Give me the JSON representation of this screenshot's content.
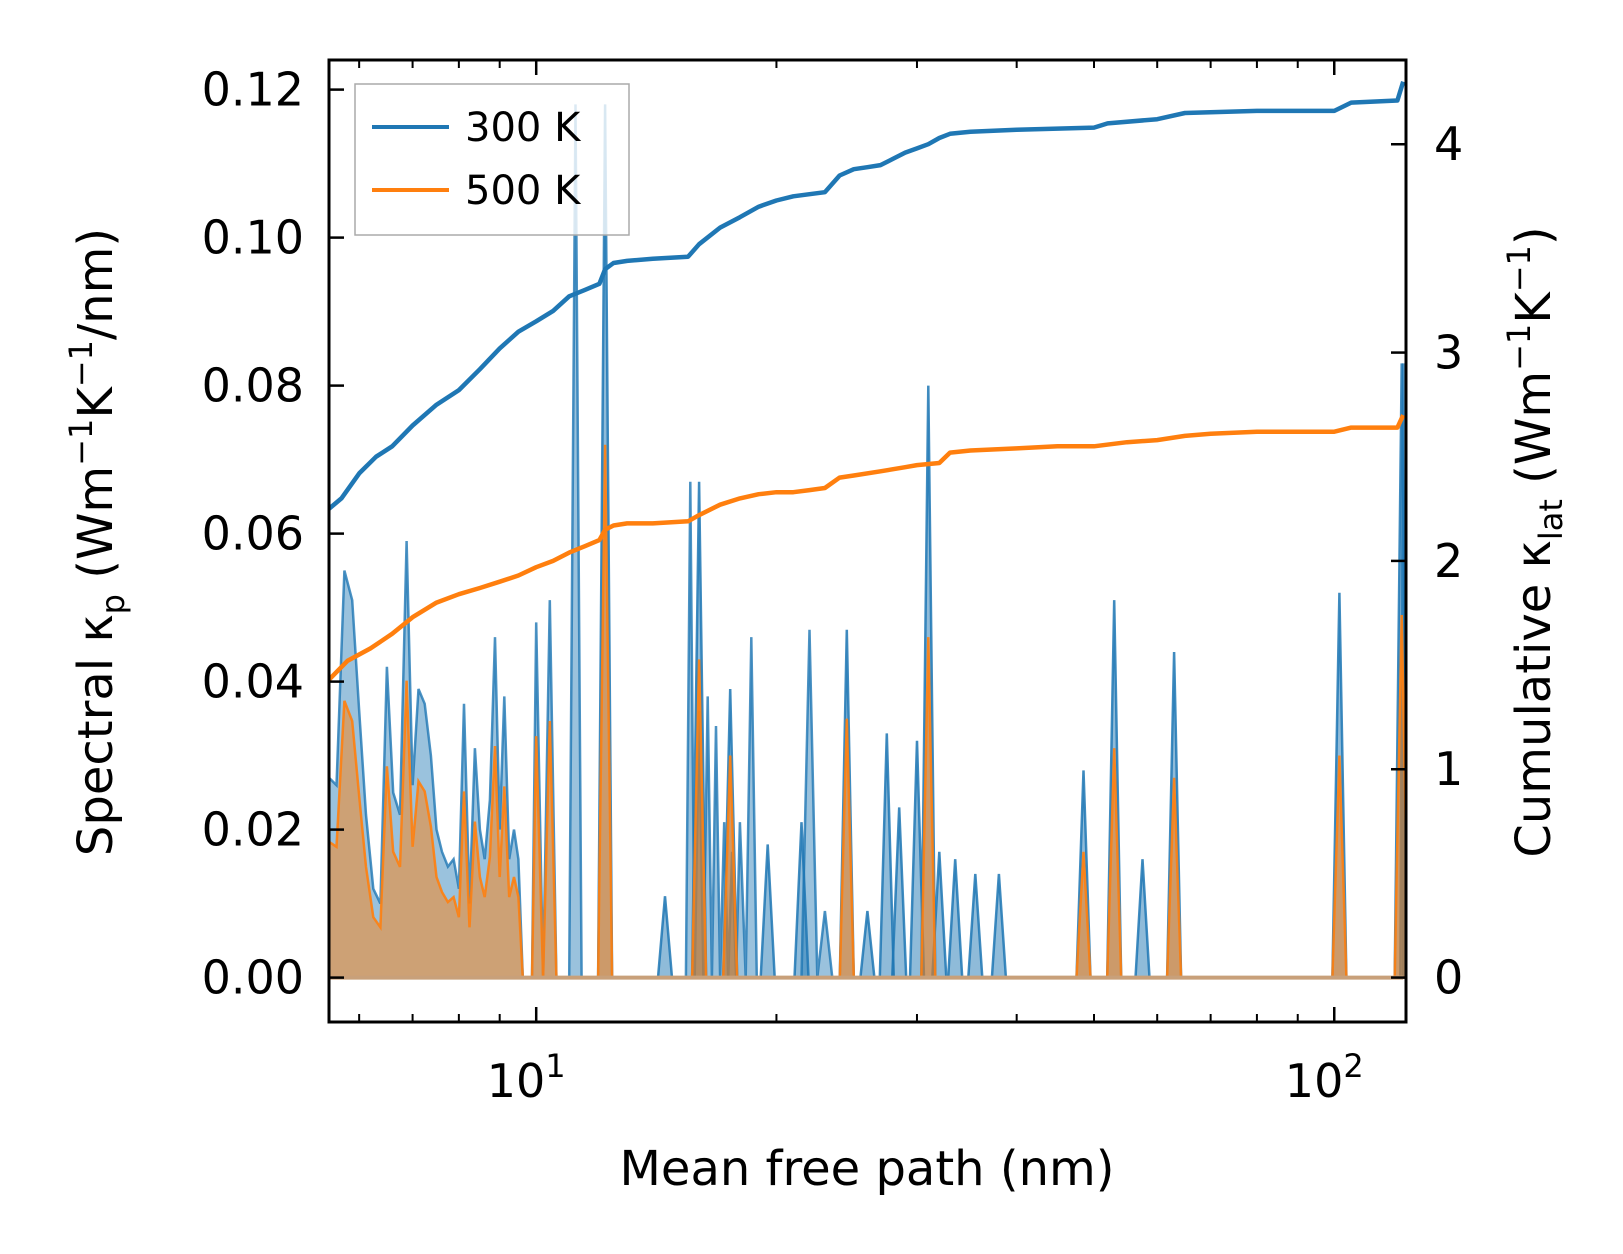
{
  "chart_data": {
    "type": "line",
    "xlabel": "Mean free path (nm)",
    "xscale": "log",
    "xlim": [
      5.5,
      123
    ],
    "x_tick_labels": [
      {
        "value": 10,
        "base": "10",
        "exp": "1"
      },
      {
        "value": 100,
        "base": "10",
        "exp": "2"
      }
    ],
    "y_left": {
      "label_prefix": "Spectral κ",
      "label_sub": "p",
      "label_units_open": " (Wm",
      "label_units_exp1": "−1",
      "label_units_mid": "K",
      "label_units_exp2": "−1",
      "label_units_close": "/nm)",
      "lim": [
        -0.006,
        0.124
      ],
      "ticks": [
        0.0,
        0.02,
        0.04,
        0.06,
        0.08,
        0.1,
        0.12
      ],
      "tick_labels": [
        "0.00",
        "0.02",
        "0.04",
        "0.06",
        "0.08",
        "0.10",
        "0.12"
      ]
    },
    "y_right": {
      "label_prefix": "Cumulative κ",
      "label_sub": "lat",
      "label_units_open": " (Wm",
      "label_units_exp1": "−1",
      "label_units_mid": "K",
      "label_units_exp2": "−1",
      "label_units_close": ")",
      "lim": [
        -0.2133,
        4.4044
      ],
      "ticks": [
        0,
        1,
        2,
        3,
        4
      ],
      "tick_labels": [
        "0",
        "1",
        "2",
        "3",
        "4"
      ]
    },
    "legend": {
      "position": "top-left",
      "entries": [
        "300 K",
        "500 K"
      ]
    },
    "colors": {
      "300 K": "#1f77b4",
      "500 K": "#ff7f0e"
    },
    "series": [
      {
        "name": "300 K",
        "axis": "right",
        "x": [
          5.5,
          5.7,
          6.0,
          6.3,
          6.6,
          7.0,
          7.5,
          8.0,
          8.5,
          9.0,
          9.5,
          10.0,
          10.5,
          11.0,
          11.5,
          12.0,
          12.2,
          12.5,
          13.0,
          14.0,
          15.5,
          16.0,
          17.0,
          18.0,
          19.0,
          20.0,
          21.0,
          22.0,
          23.0,
          24.0,
          25.0,
          26.0,
          27.0,
          28.0,
          29.0,
          30.0,
          31.0,
          32.0,
          33.0,
          35.0,
          40.0,
          50.0,
          52.0,
          60.0,
          65.0,
          80.0,
          100.0,
          105.0,
          120.0,
          122.0
        ],
        "values": [
          2.25,
          2.3,
          2.42,
          2.5,
          2.55,
          2.65,
          2.75,
          2.82,
          2.92,
          3.02,
          3.1,
          3.15,
          3.2,
          3.27,
          3.3,
          3.33,
          3.4,
          3.43,
          3.44,
          3.45,
          3.46,
          3.52,
          3.6,
          3.65,
          3.7,
          3.73,
          3.75,
          3.76,
          3.77,
          3.85,
          3.88,
          3.89,
          3.9,
          3.93,
          3.96,
          3.98,
          4.0,
          4.03,
          4.05,
          4.06,
          4.07,
          4.08,
          4.1,
          4.12,
          4.15,
          4.16,
          4.16,
          4.2,
          4.21,
          4.3
        ]
      },
      {
        "name": "500 K",
        "axis": "right",
        "x": [
          5.5,
          5.8,
          6.2,
          6.6,
          7.0,
          7.5,
          8.0,
          8.5,
          9.0,
          9.5,
          10.0,
          10.5,
          11.0,
          11.5,
          12.0,
          12.2,
          12.5,
          13.0,
          14.0,
          15.5,
          16.0,
          17.0,
          18.0,
          19.0,
          20.0,
          21.0,
          22.0,
          23.0,
          24.0,
          25.0,
          27.0,
          29.0,
          30.0,
          32.0,
          33.0,
          35.0,
          40.0,
          45.0,
          50.0,
          55.0,
          60.0,
          65.0,
          70.0,
          80.0,
          100.0,
          105.0,
          120.0,
          122.0
        ],
        "values": [
          1.43,
          1.52,
          1.58,
          1.65,
          1.73,
          1.8,
          1.84,
          1.87,
          1.9,
          1.93,
          1.97,
          2.0,
          2.04,
          2.07,
          2.1,
          2.15,
          2.17,
          2.18,
          2.18,
          2.19,
          2.22,
          2.27,
          2.3,
          2.32,
          2.33,
          2.33,
          2.34,
          2.35,
          2.4,
          2.41,
          2.43,
          2.45,
          2.46,
          2.47,
          2.52,
          2.53,
          2.54,
          2.55,
          2.55,
          2.57,
          2.58,
          2.6,
          2.61,
          2.62,
          2.62,
          2.64,
          2.64,
          2.7
        ]
      },
      {
        "name": "300 K spectral",
        "axis": "left",
        "x": [
          5.5,
          5.62,
          5.75,
          5.88,
          6.0,
          6.12,
          6.25,
          6.38,
          6.5,
          6.62,
          6.75,
          6.88,
          7.0,
          7.12,
          7.25,
          7.38,
          7.5,
          7.62,
          7.75,
          7.88,
          8.0,
          8.12,
          8.25,
          8.38,
          8.5,
          8.62,
          8.75,
          8.88,
          9.0,
          9.12,
          9.25,
          9.38,
          9.5,
          9.62,
          9.75,
          9.88,
          10.0,
          10.2,
          10.4,
          10.6,
          10.8,
          11.0,
          11.2,
          11.4,
          11.6,
          11.8,
          12.0,
          12.15,
          12.3,
          12.5,
          12.7,
          12.9,
          13.1,
          13.3,
          13.5,
          13.7,
          14.0,
          15.4,
          15.6,
          15.8,
          16.0,
          16.2,
          16.4,
          16.6,
          16.8,
          17.0,
          17.2,
          17.4,
          17.6,
          17.8,
          18.0,
          18.3,
          18.6,
          18.9,
          19.2,
          19.5,
          19.8,
          20.1,
          20.4,
          20.7,
          21.0,
          21.5,
          22.0,
          22.5,
          23.0,
          23.5,
          24.0,
          24.5,
          25.0,
          25.5,
          26.0,
          26.5,
          27.0,
          27.5,
          28.0,
          28.5,
          29.0,
          29.5,
          30.0,
          30.5,
          31.0,
          31.5,
          32.0,
          32.5,
          33.0,
          33.5,
          34.0,
          34.5,
          35.0,
          36.0,
          37.0,
          38.0,
          39.0,
          40.0,
          47.0,
          48.0,
          49.0,
          50.0,
          51.0,
          52.0,
          53.0,
          54.0,
          55.0,
          56.0,
          57.0,
          58.0,
          59.0,
          60.0,
          61.0,
          62.0,
          100.0,
          101.0,
          102.0,
          103.0,
          104.0,
          118.0,
          119.5,
          121.0,
          122.0
        ],
        "values": [
          0.027,
          0.026,
          0.055,
          0.051,
          0.036,
          0.022,
          0.012,
          0.01,
          0.042,
          0.025,
          0.022,
          0.059,
          0.026,
          0.039,
          0.037,
          0.03,
          0.02,
          0.017,
          0.015,
          0.016,
          0.012,
          0.037,
          0.01,
          0.031,
          0.02,
          0.016,
          0.024,
          0.046,
          0.02,
          0.038,
          0.016,
          0.02,
          0.016,
          0.0,
          0.0,
          0.0,
          0.048,
          0.0,
          0.051,
          0.0,
          0.0,
          0.0,
          0.118,
          0.0,
          0.0,
          0.0,
          0.0,
          0.0,
          0.0,
          0.0,
          0.0,
          0.0,
          0.0,
          0.0,
          0.0,
          0.0,
          0.0,
          0.0,
          0.067,
          0.0,
          0.036,
          0.0,
          0.038,
          0.0,
          0.034,
          0.0,
          0.021,
          0.0,
          0.017,
          0.0,
          0.021,
          0.0,
          0.046,
          0.0,
          0.0,
          0.0,
          0.0,
          0.0,
          0.0,
          0.0,
          0.0,
          0.0,
          0.047,
          0.0,
          0.009,
          0.0,
          0.0,
          0.0,
          0.0,
          0.0,
          0.0,
          0.0,
          0.0,
          0.0,
          0.0,
          0.0,
          0.0,
          0.0,
          0.0,
          0.0,
          0.0,
          0.0,
          0.0,
          0.0,
          0.0,
          0.0,
          0.0,
          0.0,
          0.0,
          0.0,
          0.0,
          0.0,
          0.0,
          0.0,
          0.0,
          0.0,
          0.0,
          0.0,
          0.0,
          0.0,
          0.0,
          0.0,
          0.0,
          0.0,
          0.0,
          0.0,
          0.0,
          0.0,
          0.0,
          0.0,
          0.0,
          0.0,
          0.0,
          0.0,
          0.0,
          0.0,
          0.0,
          0.0,
          0.083
        ]
      },
      {
        "name": "300 K spectral peaks",
        "axis": "left",
        "x": [
          12.2,
          14.5,
          16.0,
          17.5,
          19.5,
          21.5,
          24.5,
          26.0,
          27.5,
          28.5,
          30.0,
          31.0,
          32.0,
          33.5,
          35.5,
          38.0,
          48.5,
          53.0,
          57.5,
          63.0,
          101.5,
          121.5
        ],
        "values": [
          0.118,
          0.011,
          0.067,
          0.039,
          0.018,
          0.021,
          0.047,
          0.009,
          0.033,
          0.023,
          0.032,
          0.08,
          0.017,
          0.016,
          0.014,
          0.014,
          0.028,
          0.051,
          0.016,
          0.044,
          0.052,
          0.083
        ]
      },
      {
        "name": "500 K spectral peaks",
        "axis": "left",
        "x": [
          12.2,
          16.0,
          17.5,
          24.5,
          31.0,
          48.5,
          53.0,
          63.0,
          101.5,
          121.5
        ],
        "values": [
          0.072,
          0.043,
          0.03,
          0.035,
          0.046,
          0.017,
          0.031,
          0.027,
          0.03,
          0.049
        ]
      }
    ]
  }
}
